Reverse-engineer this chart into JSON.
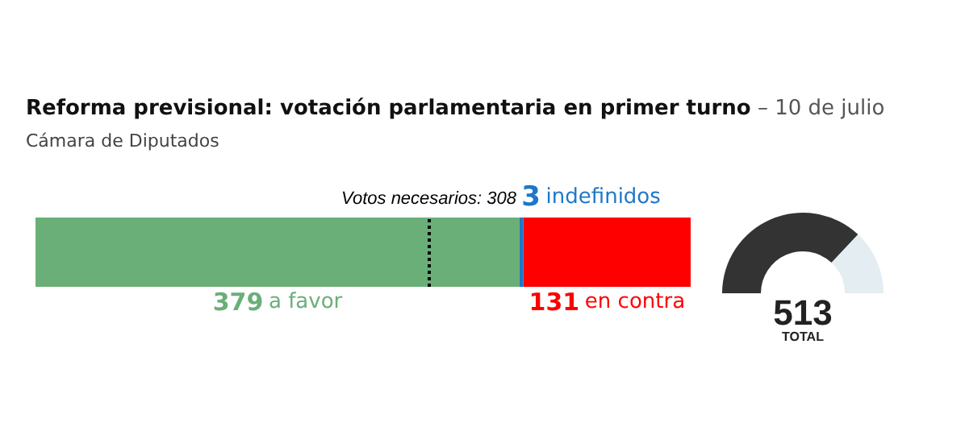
{
  "chart_data": [
    {
      "type": "bar",
      "orientation": "horizontal",
      "stacked": true,
      "title": "Reforma previsional: votación parlamentaria en primer turno",
      "subtitle": "Cámara de Diputados",
      "annotations": [
        "– 10 de julio"
      ],
      "categories": [
        null
      ],
      "series": [
        {
          "name": "a favor",
          "color": "#6aaf78",
          "values": [
            379
          ]
        },
        {
          "name": "indefinidos",
          "color": "#1f77c8",
          "values": [
            3
          ]
        },
        {
          "name": "en contra",
          "color": "#ff0000",
          "values": [
            131
          ]
        }
      ],
      "data_labels": true,
      "legend": false,
      "tick_labels": false,
      "ref_lines": [
        {
          "axis": "x",
          "value": 308,
          "label": "Votos necesarios: 308",
          "color": "#000000",
          "line_style": "dotted"
        }
      ]
    },
    {
      "type": "donut",
      "categories": [
        null,
        null
      ],
      "values": [
        74,
        26
      ],
      "colors": [
        "#333333",
        "#e3edf2"
      ],
      "annotations": [
        "513",
        "TOTAL"
      ]
    }
  ]
}
